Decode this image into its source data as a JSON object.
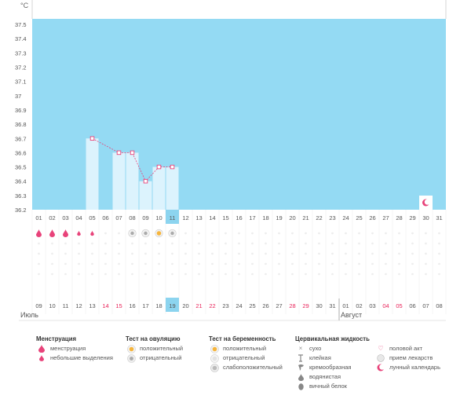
{
  "chart_data": {
    "type": "line",
    "unit": "°C",
    "y_ticks": [
      "37.5",
      "37.4",
      "37.3",
      "37.2",
      "37.1",
      "37",
      "36.9",
      "36.8",
      "36.7",
      "36.6",
      "36.5",
      "36.4",
      "36.3",
      "36.2"
    ],
    "ylim": [
      36.2,
      37.55
    ],
    "cycle_days": [
      "01",
      "02",
      "03",
      "04",
      "05",
      "06",
      "07",
      "08",
      "09",
      "10",
      "11",
      "12",
      "13",
      "14",
      "15",
      "16",
      "17",
      "18",
      "19",
      "20",
      "21",
      "22",
      "23",
      "24",
      "25",
      "26",
      "27",
      "28",
      "29",
      "30",
      "31"
    ],
    "current_day": "11",
    "calendar_dates": [
      "09",
      "10",
      "11",
      "12",
      "13",
      "14",
      "15",
      "16",
      "17",
      "18",
      "19",
      "20",
      "21",
      "22",
      "23",
      "24",
      "25",
      "26",
      "27",
      "28",
      "29",
      "30",
      "31",
      "01",
      "02",
      "03",
      "04",
      "05",
      "06",
      "07",
      "08"
    ],
    "today_date": "19",
    "weekend_dates_idx": [
      5,
      6,
      12,
      13,
      19,
      20,
      26,
      27
    ],
    "temperature": [
      {
        "day": 5,
        "value": 36.7
      },
      {
        "day": 7,
        "value": 36.6
      },
      {
        "day": 8,
        "value": 36.6
      },
      {
        "day": 9,
        "value": 36.4
      },
      {
        "day": 10,
        "value": 36.5
      },
      {
        "day": 11,
        "value": 36.5
      }
    ],
    "menstruation": [
      {
        "day": 1,
        "type": "menstruation"
      },
      {
        "day": 2,
        "type": "menstruation"
      },
      {
        "day": 3,
        "type": "menstruation"
      },
      {
        "day": 4,
        "type": "spotting"
      },
      {
        "day": 5,
        "type": "spotting"
      }
    ],
    "ovulation_tests": [
      {
        "day": 8,
        "result": "negative"
      },
      {
        "day": 9,
        "result": "negative"
      },
      {
        "day": 10,
        "result": "positive"
      },
      {
        "day": 11,
        "result": "negative"
      }
    ],
    "lunar_day": 30
  },
  "months": {
    "current": "Июль",
    "next": "Август"
  },
  "legend": {
    "menstruation": {
      "title": "Менструация",
      "items": [
        "менструация",
        "небольшие выделения"
      ]
    },
    "ovulation": {
      "title": "Тест на овуляцию",
      "items": [
        "положительный",
        "отрицательный"
      ]
    },
    "pregnancy": {
      "title": "Тест на беременность",
      "items": [
        "положительный",
        "отрицательный",
        "слабоположительный"
      ]
    },
    "cervical": {
      "title": "Цервикальная жидкость",
      "items": [
        "сухо",
        "клейкая",
        "кремообразная",
        "водянистая",
        "вичный белок"
      ]
    },
    "other": {
      "items": [
        "половой акт",
        "прием лекарств",
        "лунный календарь"
      ]
    }
  },
  "colors": {
    "plot_bg": "#94daf3",
    "bar": "#dcf3fd",
    "line": "#e8437a",
    "today": "#8cd4ef",
    "weekend": "#e8245a"
  }
}
